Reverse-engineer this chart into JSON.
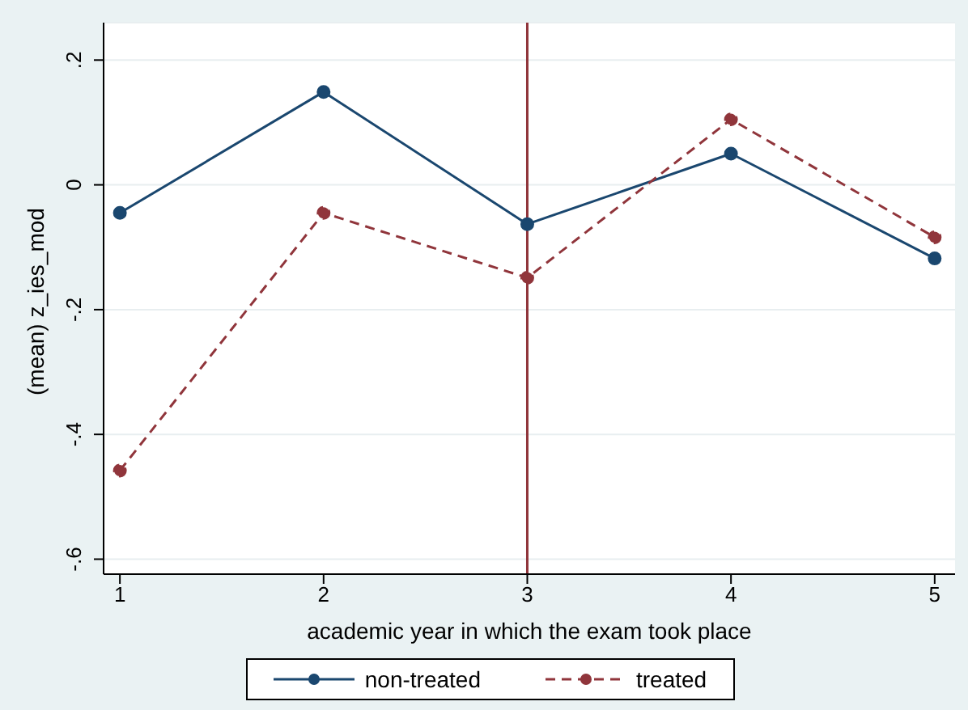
{
  "chart_data": {
    "type": "line",
    "xlabel": "academic year in which the exam took place",
    "ylabel": "(mean) z_ies_mod",
    "x": [
      1,
      2,
      3,
      4,
      5
    ],
    "series": [
      {
        "name": "non-treated",
        "color": "#1a476f",
        "values": [
          -0.045,
          0.149,
          -0.063,
          0.05,
          -0.118
        ],
        "line_style": "solid"
      },
      {
        "name": "treated",
        "color": "#90353b",
        "values": [
          -0.458,
          -0.045,
          -0.149,
          0.105,
          -0.084
        ],
        "line_style": "dashed"
      }
    ],
    "xlim": [
      0.92,
      5.1
    ],
    "xticks": [
      1,
      2,
      3,
      4,
      5
    ],
    "ylim": [
      -0.624,
      0.26
    ],
    "yticks": [
      {
        "value": -0.6,
        "label": "-.6"
      },
      {
        "value": -0.4,
        "label": "-.4"
      },
      {
        "value": -0.2,
        "label": "-.2"
      },
      {
        "value": 0,
        "label": "0"
      },
      {
        "value": 0.2,
        "label": ".2"
      }
    ],
    "ref_lines": [
      {
        "axis": "x",
        "value": 3,
        "color": "#90353b"
      }
    ],
    "grid": "y",
    "legend": "bottom",
    "marker": "circle"
  }
}
